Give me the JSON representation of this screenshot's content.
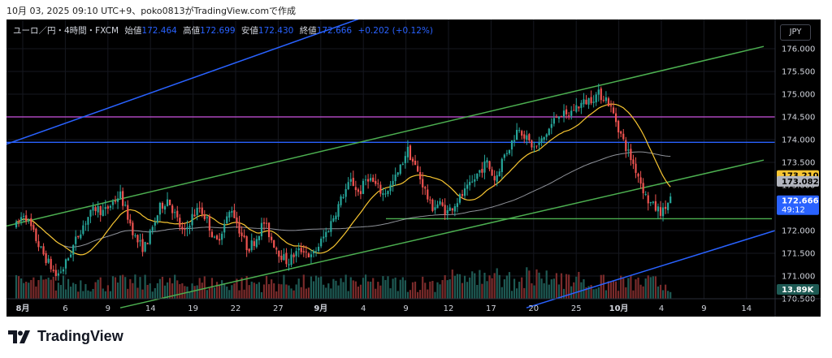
{
  "caption": "10月 03, 2025 09:10 UTC+9、poko0813がTradingView.comで作成",
  "legend": {
    "symbol": "ユーロ／円・4時間・FXCM",
    "open_label": "始値",
    "open": "172.464",
    "high_label": "高値",
    "high": "172.699",
    "low_label": "安値",
    "low": "172.430",
    "close_label": "終値",
    "close": "172.666",
    "change": "+0.202 (+0.12%)"
  },
  "currency_button": "JPY",
  "brand": "TradingView",
  "colors": {
    "up": "#26a69a",
    "down": "#ef5350",
    "ma_fast": "#f7c531",
    "ma_slow": "#b2b5be",
    "channel_blue": "#2962ff",
    "channel_green": "#4caf50",
    "resistance": "#ab47bc",
    "level_blue": "#2962ff"
  },
  "chart_data": {
    "type": "candlestick",
    "title": "ユーロ／円・4時間・FXCM",
    "y_ticks": [
      "176.000",
      "175.500",
      "175.000",
      "174.500",
      "174.000",
      "173.500",
      "173.000",
      "172.500",
      "172.000",
      "171.500",
      "171.000",
      "170.500"
    ],
    "ylim": [
      170.5,
      176.5
    ],
    "x_ticks": [
      "8月",
      "6",
      "9",
      "14",
      "19",
      "22",
      "27",
      "9月",
      "4",
      "9",
      "12",
      "17",
      "20",
      "25",
      "10月",
      "4",
      "9",
      "14"
    ],
    "price_labels": [
      {
        "label": "173.210",
        "value": 173.21,
        "color": "#f7c531"
      },
      {
        "label": "173.082",
        "value": 173.082,
        "color": "#b2b5be"
      },
      {
        "label": "172.666",
        "value": 172.666,
        "color": "#2962ff",
        "sub": "49:12"
      }
    ],
    "volume_label": "13.89K",
    "horizontal_lines": [
      {
        "name": "resistance",
        "value": 174.5,
        "color": "#ab47bc"
      },
      {
        "name": "level",
        "value": 173.94,
        "color": "#2962ff"
      },
      {
        "name": "support",
        "value": 172.26,
        "color": "#4caf50"
      }
    ],
    "channels": [
      {
        "name": "green-upper",
        "from": [
          "8月",
          172.1
        ],
        "to": [
          "14",
          176.05
        ]
      },
      {
        "name": "green-lower",
        "from": [
          "14",
          170.3
        ],
        "to": [
          "14",
          173.55
        ]
      },
      {
        "name": "blue-upper",
        "from": [
          "8月",
          173.9
        ],
        "to": [
          "4",
          177.0
        ]
      },
      {
        "name": "blue-lower",
        "from": [
          "20",
          170.3
        ],
        "to": [
          "14",
          172.0
        ]
      }
    ],
    "path_points": [
      172.1,
      172.4,
      172.0,
      171.6,
      171.3,
      171.0,
      171.2,
      171.6,
      172.0,
      172.3,
      172.5,
      172.4,
      172.6,
      172.8,
      172.3,
      171.8,
      171.6,
      172.0,
      172.5,
      172.7,
      172.3,
      171.9,
      172.3,
      172.5,
      172.2,
      171.7,
      172.1,
      172.5,
      172.0,
      171.6,
      171.8,
      172.2,
      171.8,
      171.5,
      171.3,
      171.5,
      171.6,
      171.4,
      171.7,
      172.0,
      172.4,
      172.8,
      173.1,
      172.8,
      173.2,
      173.0,
      172.8,
      173.0,
      173.3,
      173.8,
      173.4,
      173.0,
      172.5,
      172.6,
      172.4,
      172.6,
      172.8,
      173.0,
      173.3,
      173.5,
      173.1,
      173.6,
      173.9,
      174.3,
      174.0,
      173.8,
      174.0,
      174.3,
      174.6,
      174.5,
      174.7,
      174.8,
      174.9,
      175.0,
      174.9,
      174.5,
      174.0,
      173.6,
      173.2,
      172.7,
      172.5,
      172.4,
      172.7
    ],
    "series": [
      {
        "name": "price",
        "type": "candles"
      },
      {
        "name": "ma_fast"
      },
      {
        "name": "ma_slow"
      },
      {
        "name": "volume"
      }
    ]
  }
}
